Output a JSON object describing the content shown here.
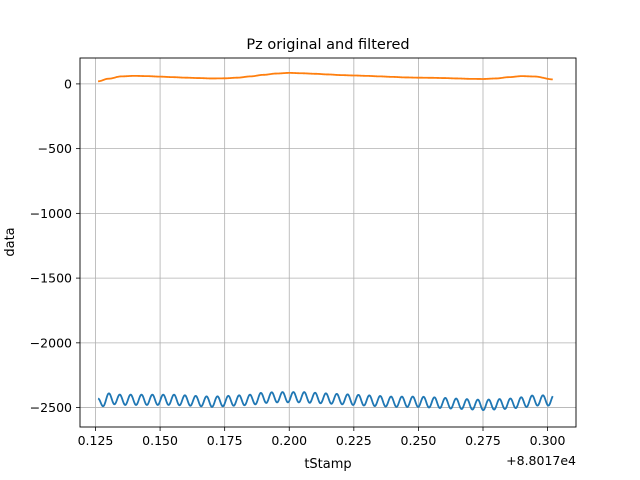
{
  "chart_data": {
    "type": "line",
    "title": "Pz original and filtered",
    "xlabel": "tStamp",
    "ylabel": "data",
    "x_offset_label": "+8.8017e4",
    "xlim": [
      0.119,
      0.311
    ],
    "ylim": [
      -2650,
      200
    ],
    "xticks": [
      0.125,
      0.15,
      0.175,
      0.2,
      0.225,
      0.25,
      0.275,
      0.3
    ],
    "xtick_labels": [
      "0.125",
      "0.150",
      "0.175",
      "0.200",
      "0.225",
      "0.250",
      "0.275",
      "0.300"
    ],
    "yticks": [
      0,
      -500,
      -1000,
      -1500,
      -2000,
      -2500
    ],
    "ytick_labels": [
      "0",
      "−500",
      "−1000",
      "−1500",
      "−2000",
      "−2500"
    ],
    "grid": true,
    "colors": {
      "original": "#1f77b4",
      "filtered": "#ff7f0e",
      "grid": "#b0b0b0"
    },
    "series": [
      {
        "x": [
          0.126,
          0.13,
          0.135,
          0.14,
          0.145,
          0.15,
          0.155,
          0.16,
          0.165,
          0.17,
          0.175,
          0.18,
          0.185,
          0.19,
          0.195,
          0.2,
          0.205,
          0.21,
          0.215,
          0.22,
          0.225,
          0.23,
          0.235,
          0.24,
          0.245,
          0.25,
          0.255,
          0.26,
          0.265,
          0.27,
          0.275,
          0.28,
          0.285,
          0.29,
          0.295,
          0.302
        ],
        "y": [
          -2470,
          -2430,
          -2440,
          -2440,
          -2440,
          -2440,
          -2440,
          -2445,
          -2450,
          -2455,
          -2450,
          -2445,
          -2440,
          -2425,
          -2420,
          -2420,
          -2420,
          -2425,
          -2430,
          -2435,
          -2440,
          -2445,
          -2450,
          -2455,
          -2455,
          -2455,
          -2460,
          -2465,
          -2470,
          -2475,
          -2480,
          -2475,
          -2470,
          -2460,
          -2445,
          -2445
        ],
        "oscillation_amplitude": 40,
        "oscillation_period": 0.0042
      },
      {
        "x": [
          0.126,
          0.13,
          0.135,
          0.14,
          0.145,
          0.15,
          0.155,
          0.16,
          0.165,
          0.17,
          0.175,
          0.18,
          0.185,
          0.19,
          0.195,
          0.2,
          0.205,
          0.21,
          0.215,
          0.22,
          0.225,
          0.23,
          0.235,
          0.24,
          0.245,
          0.25,
          0.255,
          0.26,
          0.265,
          0.27,
          0.275,
          0.28,
          0.285,
          0.29,
          0.295,
          0.302
        ],
        "y": [
          20,
          40,
          58,
          62,
          60,
          56,
          52,
          48,
          45,
          42,
          43,
          48,
          58,
          70,
          80,
          85,
          82,
          78,
          73,
          68,
          65,
          62,
          58,
          54,
          50,
          48,
          47,
          45,
          42,
          39,
          38,
          42,
          52,
          60,
          57,
          35
        ]
      }
    ]
  }
}
